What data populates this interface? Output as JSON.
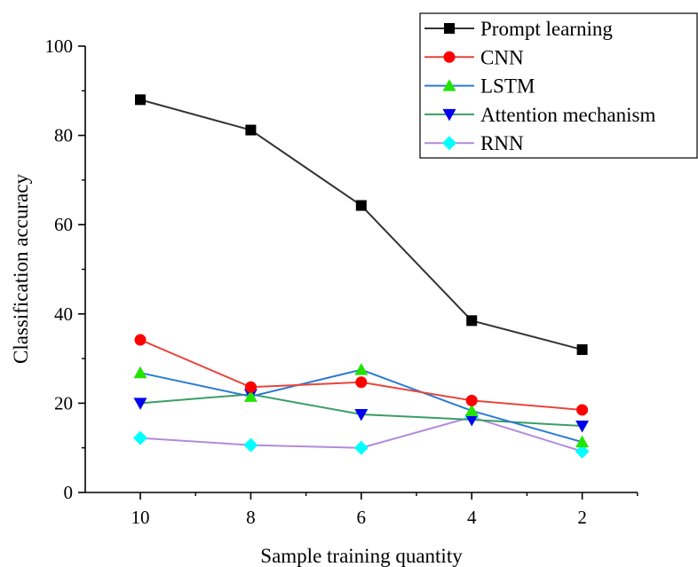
{
  "chart_data": {
    "type": "line",
    "xlabel": "Sample training quantity",
    "ylabel": "Classification accuracy",
    "categories": [
      "10",
      "8",
      "6",
      "4",
      "2"
    ],
    "ylim": [
      0,
      100
    ],
    "yticks": [
      "0",
      "20",
      "40",
      "60",
      "80",
      "100"
    ],
    "grid": false,
    "legend_position": "top-right",
    "series": [
      {
        "name": "Prompt learning",
        "values": [
          88,
          81.2,
          64.3,
          38.5,
          32.0
        ],
        "color": "#333333",
        "marker": "square",
        "marker_color": "#000000"
      },
      {
        "name": "CNN",
        "values": [
          34.2,
          23.6,
          24.7,
          20.6,
          18.5
        ],
        "color": "#e8453c",
        "marker": "circle",
        "marker_color": "#ff0000"
      },
      {
        "name": "LSTM",
        "values": [
          26.8,
          21.5,
          27.5,
          18.3,
          11.3
        ],
        "color": "#2a7bd5",
        "marker": "triangle-up",
        "marker_color": "#22e400"
      },
      {
        "name": "Attention mechanism",
        "values": [
          20.0,
          22.0,
          17.5,
          16.3,
          14.9
        ],
        "color": "#3a9e66",
        "marker": "triangle-down",
        "marker_color": "#0000ee"
      },
      {
        "name": "RNN",
        "values": [
          12.2,
          10.6,
          10.0,
          16.9,
          9.2
        ],
        "color": "#b18cdc",
        "marker": "diamond",
        "marker_color": "#00ffff"
      }
    ]
  }
}
